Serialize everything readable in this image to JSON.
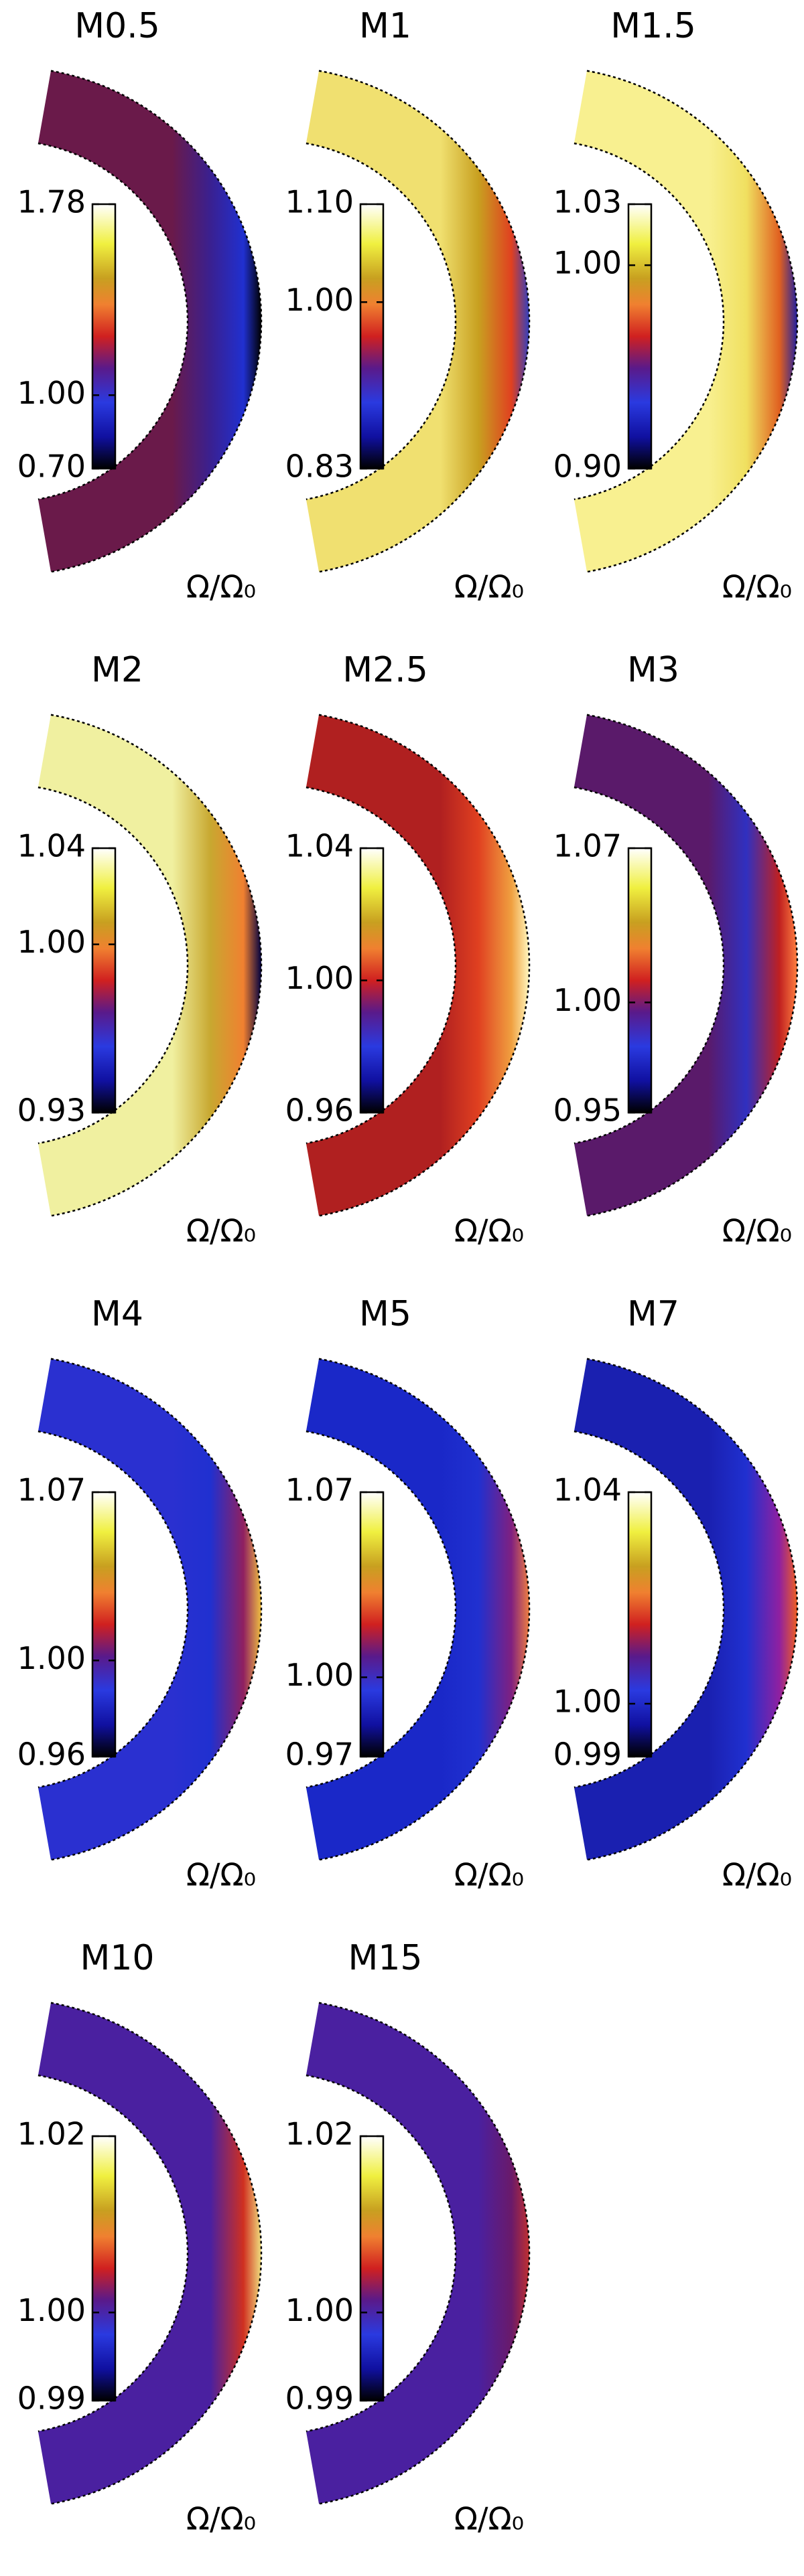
{
  "chart_data": [
    {
      "type": "contour",
      "title": "M0.5",
      "colorbar_label": "Ω/Ω₀",
      "clim": [
        0.7,
        1.78
      ],
      "cticks": [
        1.78,
        {
          "value": 1,
          "label": "1.00"
        },
        {
          "value": 0.7,
          "label": "0.70"
        }
      ]
    },
    {
      "type": "contour",
      "title": "M1",
      "colorbar_label": "Ω/Ω₀",
      "clim": [
        0.83,
        1.1
      ],
      "cticks": [
        {
          "value": 1.1,
          "label": "1.10"
        },
        {
          "value": 1,
          "label": "1.00"
        },
        0.83
      ]
    },
    {
      "type": "contour",
      "title": "M1.5",
      "colorbar_label": "Ω/Ω₀",
      "clim": [
        0.9,
        1.03
      ],
      "cticks": [
        1.03,
        {
          "value": 1,
          "label": "1.00"
        },
        {
          "value": 0.9,
          "label": "0.90"
        }
      ]
    },
    {
      "type": "contour",
      "title": "M2",
      "colorbar_label": "Ω/Ω₀",
      "clim": [
        0.93,
        1.04
      ],
      "cticks": [
        1.04,
        {
          "value": 1,
          "label": "1.00"
        },
        0.93
      ]
    },
    {
      "type": "contour",
      "title": "M2.5",
      "colorbar_label": "Ω/Ω₀",
      "clim": [
        0.96,
        1.04
      ],
      "cticks": [
        1.04,
        {
          "value": 1,
          "label": "1.00"
        },
        0.96
      ]
    },
    {
      "type": "contour",
      "title": "M3",
      "colorbar_label": "Ω/Ω₀",
      "clim": [
        0.95,
        1.07
      ],
      "cticks": [
        1.07,
        {
          "value": 1,
          "label": "1.00"
        },
        0.95
      ]
    },
    {
      "type": "contour",
      "title": "M4",
      "colorbar_label": "Ω/Ω₀",
      "clim": [
        0.96,
        1.07
      ],
      "cticks": [
        1.07,
        {
          "value": 1,
          "label": "1.00"
        },
        0.96
      ]
    },
    {
      "type": "contour",
      "title": "M5",
      "colorbar_label": "Ω/Ω₀",
      "clim": [
        0.97,
        1.07
      ],
      "cticks": [
        1.07,
        {
          "value": 1,
          "label": "1.00"
        },
        0.97
      ]
    },
    {
      "type": "contour",
      "title": "M7",
      "colorbar_label": "Ω/Ω₀",
      "clim": [
        0.99,
        1.04
      ],
      "cticks": [
        1.04,
        {
          "value": 1,
          "label": "1.00"
        },
        0.99
      ]
    },
    {
      "type": "contour",
      "title": "M10",
      "colorbar_label": "Ω/Ω₀",
      "clim": [
        0.99,
        1.02
      ],
      "cticks": [
        1.02,
        {
          "value": 1,
          "label": "1.00"
        },
        0.99
      ]
    },
    {
      "type": "contour",
      "title": "M15",
      "colorbar_label": "Ω/Ω₀",
      "clim": [
        0.99,
        1.02
      ],
      "cticks": [
        1.02,
        {
          "value": 1,
          "label": "1.00"
        },
        0.99
      ]
    }
  ]
}
